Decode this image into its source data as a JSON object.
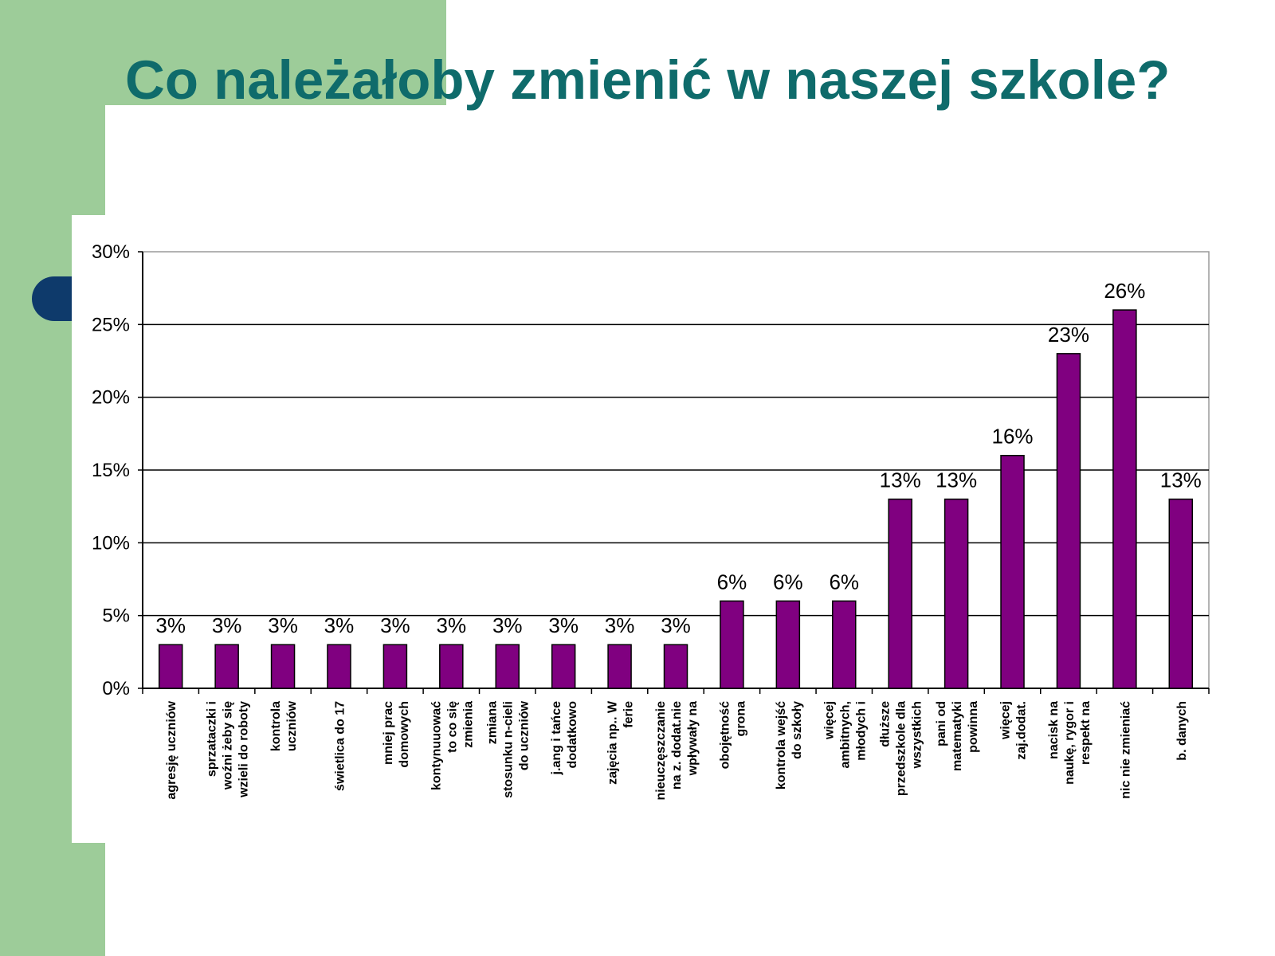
{
  "slide": {
    "title": "Co należałoby zmienić w naszej szkole?"
  },
  "colors": {
    "bar": "#800080",
    "title": "#0f6b6b",
    "background_green": "#9dcc99",
    "accent_navy": "#0e3a6b"
  },
  "chart_data": {
    "type": "bar",
    "title": "",
    "xlabel": "",
    "ylabel": "",
    "ylim": [
      0,
      30
    ],
    "yticks": [
      "0%",
      "5%",
      "10%",
      "15%",
      "20%",
      "25%",
      "30%"
    ],
    "grid": true,
    "legend": "none",
    "categories": [
      [
        "agresję uczniów"
      ],
      [
        "sprzataczki i",
        "woźni żeby się",
        "wzieli do roboty"
      ],
      [
        "kontrola",
        "uczniów"
      ],
      [
        "świetlica do 17"
      ],
      [
        "mniej prac",
        "domowych"
      ],
      [
        "kontynuuować",
        "to co się",
        "zmienia"
      ],
      [
        "zmiana",
        "stosunku n-cieli",
        "do uczniów"
      ],
      [
        "j.ang i tańce",
        "dodatkowo"
      ],
      [
        "zajęcia np.. W",
        "ferie"
      ],
      [
        "nieuczęszczanie",
        "na z. dodat.nie",
        "wpływały na"
      ],
      [
        "obojętność",
        "grona"
      ],
      [
        "kontrola wejść",
        "do szkoły"
      ],
      [
        "więcej",
        "ambitnych,",
        "młodych i"
      ],
      [
        "dłuższe",
        "przedszkole dla",
        "wszystkich"
      ],
      [
        "pani od",
        "matematyki",
        "powinna"
      ],
      [
        "więcej",
        "zaj.dodat."
      ],
      [
        "nacisk na",
        "naukę, rygor i",
        "respekt na"
      ],
      [
        "nic nie zmieniać"
      ],
      [
        "b. danych"
      ]
    ],
    "values": [
      3,
      3,
      3,
      3,
      3,
      3,
      3,
      3,
      3,
      3,
      6,
      6,
      6,
      13,
      13,
      16,
      23,
      26,
      13
    ],
    "value_labels": [
      "3%",
      "3%",
      "3%",
      "3%",
      "3%",
      "3%",
      "3%",
      "3%",
      "3%",
      "3%",
      "6%",
      "6%",
      "6%",
      "13%",
      "13%",
      "16%",
      "23%",
      "26%",
      "13%"
    ]
  }
}
